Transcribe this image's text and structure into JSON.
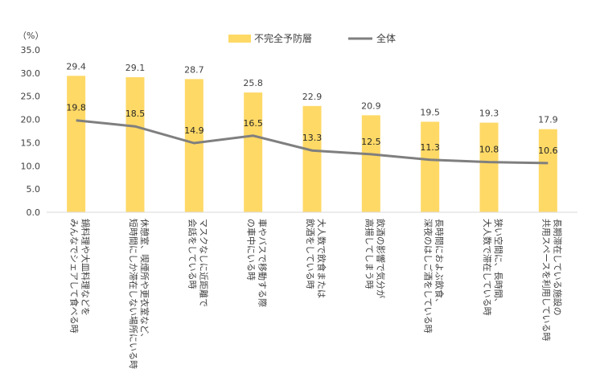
{
  "chart_data": {
    "type": "bar",
    "ylabel": "（%）",
    "ylim": [
      0,
      35
    ],
    "yticks": [
      "0.0",
      "5.0",
      "10.0",
      "15.0",
      "20.0",
      "25.0",
      "30.0",
      "35.0"
    ],
    "grid": false,
    "legend_position": "top",
    "categories": [
      [
        "鍋料理や大皿料理などを",
        "みんなでシェアして食べる時"
      ],
      [
        "休憩室、喫煙所や更衣室など、",
        "短時間にしか滞在しない場所にいる時"
      ],
      [
        "マスクなしに近距離で",
        "会話をしている時"
      ],
      [
        "車やバスで移動する際",
        "の車中にいる時"
      ],
      [
        "大人数で飲食または",
        "飲酒をしている時"
      ],
      [
        "飲酒の影響で気分が",
        "高揚してしまう時"
      ],
      [
        "長時間におよぶ飲食、",
        "深夜のはしご酒をしている時"
      ],
      [
        "狭い空間に、長時間、",
        "大人数で滞在している時"
      ],
      [
        "長期滞在している施設の",
        "共用スペースを利用している時"
      ]
    ],
    "series": [
      {
        "name": "不完全予防層",
        "type": "bar",
        "color": "#FFD966",
        "values": [
          29.4,
          29.1,
          28.7,
          25.8,
          22.9,
          20.9,
          19.5,
          19.3,
          17.9
        ],
        "labels": [
          "29.4",
          "29.1",
          "28.7",
          "25.8",
          "22.9",
          "20.9",
          "19.5",
          "19.3",
          "17.9"
        ]
      },
      {
        "name": "全体",
        "type": "line",
        "color": "#7F7F7F",
        "values": [
          19.8,
          18.5,
          14.9,
          16.5,
          13.3,
          12.5,
          11.3,
          10.8,
          10.6
        ],
        "labels": [
          "19.8",
          "18.5",
          "14.9",
          "16.5",
          "13.3",
          "12.5",
          "11.3",
          "10.8",
          "10.6"
        ]
      }
    ]
  }
}
